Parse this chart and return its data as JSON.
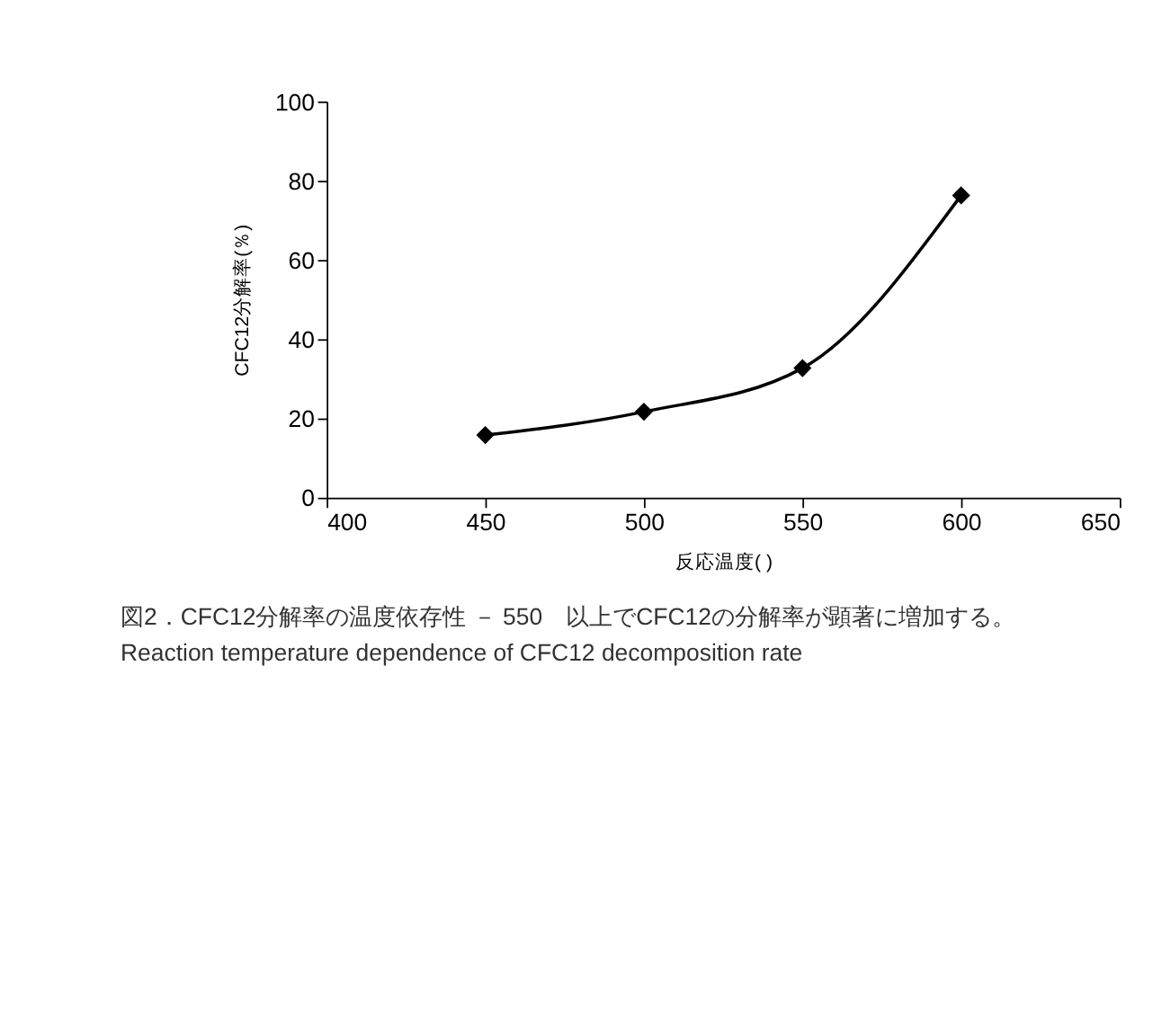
{
  "chart_data": {
    "type": "line",
    "xlabel": "反応温度( )",
    "ylabel": "CFC12分解率(％)",
    "x": [
      450,
      500,
      550,
      600
    ],
    "series": [
      {
        "color": "#000000",
        "values": [
          15.8,
          21.7,
          32.7,
          76.3
        ]
      }
    ],
    "xlim": [
      400,
      650
    ],
    "xticks": [
      400,
      450,
      500,
      550,
      600,
      650
    ],
    "ylim": [
      0,
      100
    ],
    "yticks": [
      0,
      20,
      40,
      60,
      80,
      100
    ],
    "grid": false,
    "legend": false,
    "marker": "diamond",
    "line_style": "solid",
    "annotations": [
      "図2．CFC12分解率の温度依存性 － 550　以上でCFC12の分解率が顕著に増加する。",
      "Reaction temperature dependence of CFC12 decomposition rate"
    ]
  }
}
